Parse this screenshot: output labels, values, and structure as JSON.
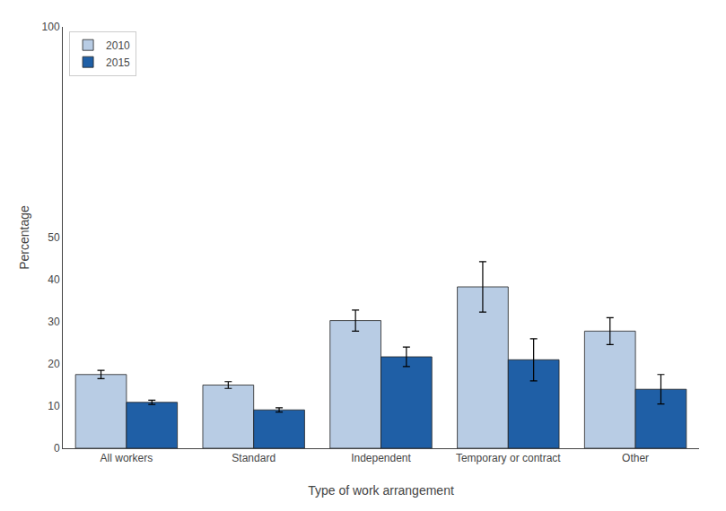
{
  "chart_data": {
    "type": "bar",
    "xlabel": "Type of work arrangement",
    "ylabel": "Percentage",
    "categories": [
      "All workers",
      "Standard",
      "Independent",
      "Temporary or contract",
      "Other"
    ],
    "series": [
      {
        "name": "2010",
        "color": "#b8cce4",
        "values": [
          17.5,
          15.0,
          30.3,
          38.3,
          27.8
        ],
        "errors": [
          1.0,
          0.8,
          2.5,
          6.0,
          3.2
        ]
      },
      {
        "name": "2015",
        "color": "#1f5fa6",
        "values": [
          10.9,
          9.1,
          21.7,
          21.0,
          14.0
        ],
        "errors": [
          0.5,
          0.5,
          2.3,
          5.0,
          3.5
        ]
      }
    ],
    "ylim": [
      0,
      100
    ],
    "yticks": [
      0,
      10,
      20,
      30,
      40,
      50,
      100
    ],
    "grid": false,
    "legend": "upper left"
  }
}
